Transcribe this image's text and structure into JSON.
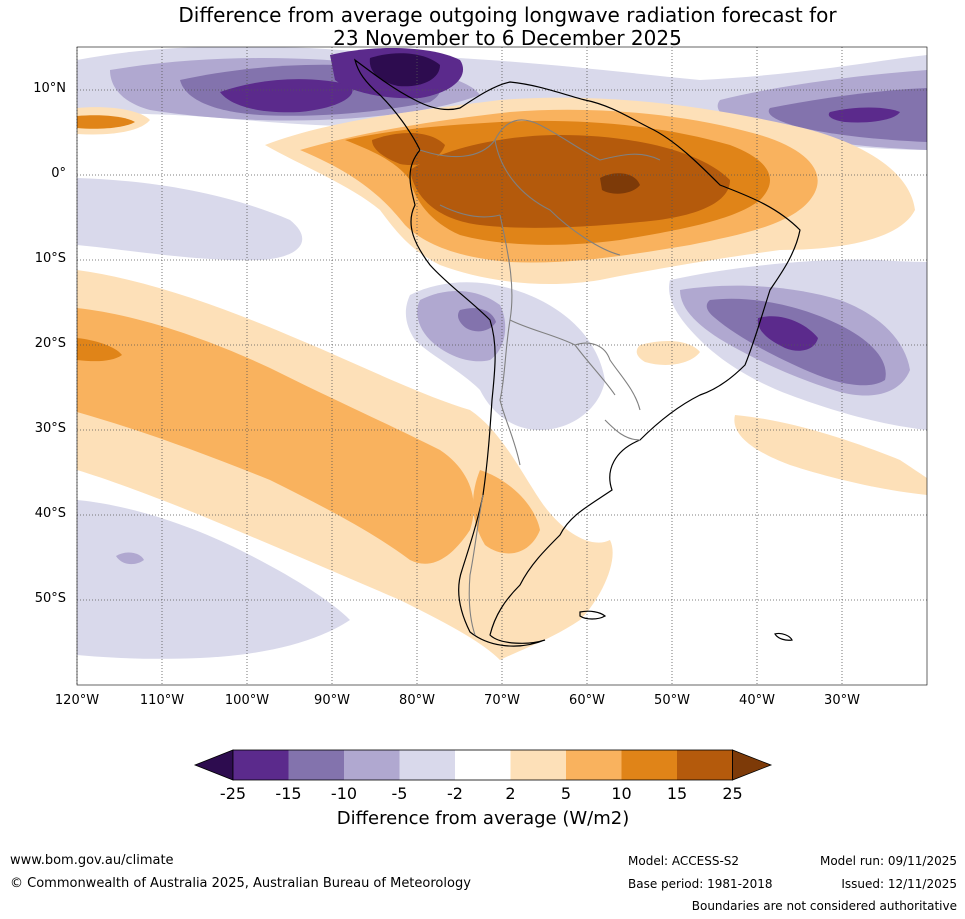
{
  "title": {
    "line1": "Difference from average outgoing longwave radiation forecast for",
    "line2": "23 November to 6 December 2025"
  },
  "axes": {
    "latitude_labels": [
      "10°N",
      "0°",
      "10°S",
      "20°S",
      "30°S",
      "40°S",
      "50°S"
    ],
    "longitude_labels": [
      "120°W",
      "110°W",
      "100°W",
      "90°W",
      "80°W",
      "70°W",
      "60°W",
      "50°W",
      "40°W",
      "30°W"
    ]
  },
  "legend": {
    "title": "Difference from average (W/m2)",
    "boundaries": [
      "-25",
      "-15",
      "-10",
      "-5",
      "-2",
      "2",
      "5",
      "10",
      "15",
      "25"
    ],
    "colors": [
      "#2d0c4f",
      "#5b2a8c",
      "#8373ad",
      "#b0a8d0",
      "#d9d9eb",
      "#ffffff",
      "#fde0b8",
      "#f9b25e",
      "#e08418",
      "#b45a0c",
      "#7d3a08"
    ],
    "series": {
      "purple_strong": "#5b2a8c",
      "purple_mid": "#8373ad",
      "purple_light": "#b0a8d0",
      "purple_pale": "#d9d9eb",
      "orange_pale": "#fde0b8",
      "orange_light": "#f9b25e",
      "orange_mid": "#e08418",
      "orange_strong": "#b45a0c",
      "orange_extreme": "#7d3a08",
      "purple_extreme": "#2d0c4f"
    }
  },
  "footer": {
    "website": "www.bom.gov.au/climate",
    "copyright": "© Commonwealth of Australia 2025, Australian Bureau of Meteorology",
    "model": "Model: ACCESS-S2",
    "base_period": "Base period: 1981-2018",
    "model_run": "Model run: 09/11/2025",
    "issued": "Issued: 12/11/2025",
    "disclaimer": "Boundaries are not considered authoritative"
  }
}
